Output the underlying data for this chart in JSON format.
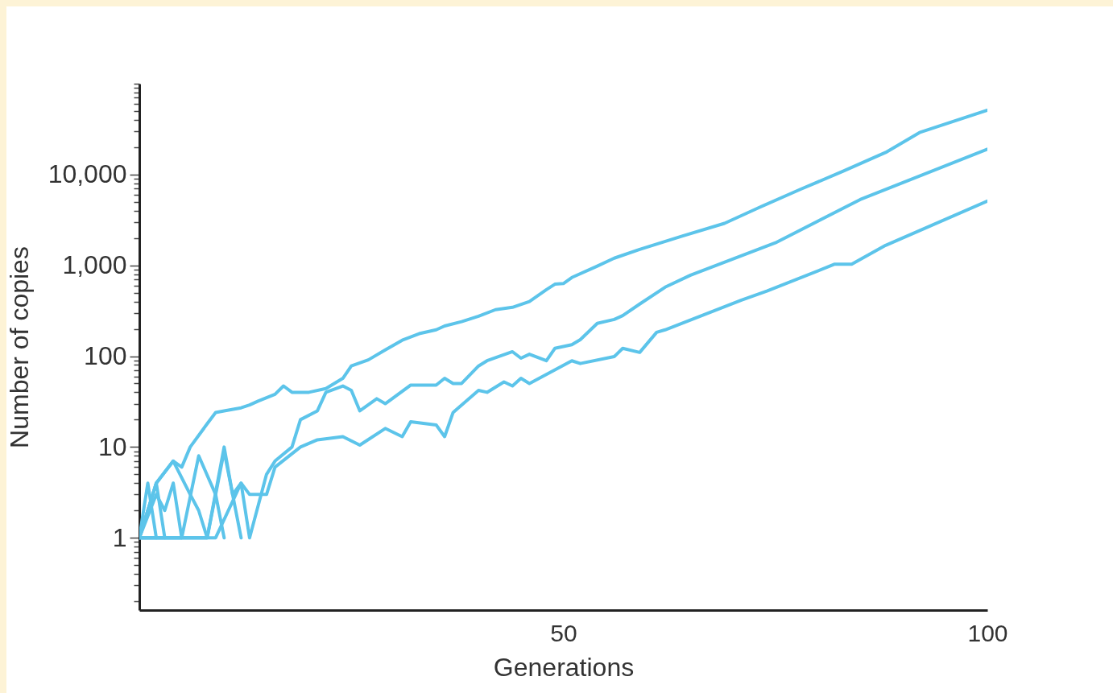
{
  "chart_data": {
    "type": "line",
    "xlabel": "Generations",
    "ylabel": "Number of copies",
    "log": true,
    "xlim": [
      0,
      100
    ],
    "xticks": [
      50,
      100
    ],
    "ylim": [
      0.16,
      100000
    ],
    "yticks": [
      {
        "value": 0.2,
        "label": null
      },
      {
        "value": 0.3,
        "label": null
      },
      {
        "value": 0.4,
        "label": null
      },
      {
        "value": 0.5,
        "label": null
      },
      {
        "value": 0.6,
        "label": null
      },
      {
        "value": 0.7,
        "label": null
      },
      {
        "value": 0.8,
        "label": null
      },
      {
        "value": 0.9,
        "label": null
      },
      1,
      {
        "value": 2,
        "label": null
      },
      {
        "value": 3,
        "label": null
      },
      {
        "value": 4,
        "label": null
      },
      {
        "value": 5,
        "label": null
      },
      {
        "value": 6,
        "label": null
      },
      {
        "value": 7,
        "label": null
      },
      {
        "value": 8,
        "label": null
      },
      {
        "value": 9,
        "label": null
      },
      10,
      {
        "value": 20,
        "label": null
      },
      {
        "value": 30,
        "label": null
      },
      {
        "value": 40,
        "label": null
      },
      {
        "value": 50,
        "label": null
      },
      {
        "value": 60,
        "label": null
      },
      {
        "value": 70,
        "label": null
      },
      {
        "value": 80,
        "label": null
      },
      {
        "value": 90,
        "label": null
      },
      100,
      {
        "value": 200,
        "label": null
      },
      {
        "value": 300,
        "label": null
      },
      {
        "value": 400,
        "label": null
      },
      {
        "value": 500,
        "label": null
      },
      {
        "value": 600,
        "label": null
      },
      {
        "value": 700,
        "label": null
      },
      {
        "value": 800,
        "label": null
      },
      {
        "value": 900,
        "label": null
      },
      {
        "value": 1000,
        "label": "1,000"
      },
      {
        "value": 2000,
        "label": null
      },
      {
        "value": 3000,
        "label": null
      },
      {
        "value": 4000,
        "label": null
      },
      {
        "value": 5000,
        "label": null
      },
      {
        "value": 6000,
        "label": null
      },
      {
        "value": 7000,
        "label": null
      },
      {
        "value": 8000,
        "label": null
      },
      {
        "value": 9000,
        "label": null
      },
      {
        "value": 10000,
        "label": "10,000"
      },
      {
        "value": 20000,
        "label": null
      },
      {
        "value": 30000,
        "label": null
      },
      {
        "value": 40000,
        "label": null
      },
      {
        "value": 50000,
        "label": null
      },
      {
        "value": 60000,
        "label": null
      },
      {
        "value": 70000,
        "label": null
      },
      {
        "value": 80000,
        "label": null
      },
      {
        "value": 90000,
        "label": null
      },
      {
        "value": 100000,
        "label": null
      }
    ],
    "grid": false,
    "legend": false,
    "line_style": "solid",
    "marker": "none",
    "series": [
      {
        "color": "#5cc4ea",
        "x": [
          0,
          2,
          4,
          5,
          6,
          8,
          9,
          10,
          12,
          13,
          14,
          16,
          17,
          18,
          20,
          22,
          24,
          25,
          27,
          29,
          31,
          33,
          35,
          36,
          38,
          40,
          42,
          44,
          46,
          48,
          49,
          50,
          51,
          54,
          56,
          59,
          64,
          69,
          73,
          78,
          83,
          88,
          92,
          100
        ],
        "values": [
          1,
          4,
          7,
          6,
          10,
          18,
          24,
          25,
          27,
          29,
          32,
          38,
          47,
          40,
          40,
          44,
          57,
          78,
          91,
          117,
          150,
          177,
          195,
          215,
          240,
          275,
          325,
          345,
          400,
          540,
          620,
          630,
          735,
          980,
          1200,
          1500,
          2100,
          2900,
          4300,
          6900,
          10900,
          17500,
          29000,
          51000
        ]
      },
      {
        "color": "#5cc4ea",
        "x": [
          0,
          9,
          12,
          13,
          15,
          16,
          18,
          19,
          21,
          22,
          24,
          25,
          26,
          28,
          29,
          32,
          35,
          36,
          37,
          38,
          40,
          41,
          44,
          45,
          46,
          48,
          49,
          51,
          52,
          54,
          56,
          57,
          59,
          62,
          65,
          75,
          85,
          100
        ],
        "values": [
          1,
          1,
          4,
          1,
          5,
          7,
          10,
          20,
          25,
          40,
          47,
          42,
          25,
          34,
          30,
          48,
          48,
          57,
          50,
          50,
          78,
          89,
          112,
          95,
          105,
          89,
          122,
          134,
          152,
          230,
          254,
          280,
          375,
          575,
          780,
          1770,
          5300,
          19000
        ]
      },
      {
        "color": "#5cc4ea",
        "x": [
          0,
          8,
          10,
          11,
          12,
          13,
          15,
          16,
          19,
          21,
          24,
          26,
          29,
          31,
          32,
          35,
          36,
          37,
          40,
          41,
          43,
          44,
          45,
          46,
          51,
          52,
          56,
          57,
          59,
          61,
          62,
          71,
          74,
          82,
          84,
          88,
          100
        ],
        "values": [
          1,
          1,
          10,
          3,
          4,
          3,
          3,
          6,
          10,
          12,
          13,
          10.5,
          16,
          13,
          19,
          17.5,
          13,
          24,
          42,
          40,
          52,
          47,
          57,
          50,
          89,
          83,
          99,
          122,
          110,
          183,
          195,
          415,
          520,
          1030,
          1030,
          1660,
          5100
        ]
      },
      {
        "color": "#5cc4ea",
        "x": [
          0,
          1,
          2
        ],
        "values": [
          1,
          4,
          1
        ]
      },
      {
        "color": "#5cc4ea",
        "x": [
          0,
          1,
          2,
          3
        ],
        "values": [
          1,
          2,
          4,
          1
        ]
      },
      {
        "color": "#5cc4ea",
        "x": [
          0,
          2,
          3,
          4,
          5
        ],
        "values": [
          1,
          3,
          2,
          4,
          1
        ]
      },
      {
        "color": "#5cc4ea",
        "x": [
          0,
          2,
          4,
          6,
          7,
          8
        ],
        "values": [
          1,
          4,
          7,
          3,
          2,
          1
        ]
      },
      {
        "color": "#5cc4ea",
        "x": [
          0,
          5,
          7,
          9,
          10
        ],
        "values": [
          1,
          1,
          8,
          3,
          1
        ]
      },
      {
        "color": "#5cc4ea",
        "x": [
          0,
          4,
          8,
          10,
          11,
          12
        ],
        "values": [
          1,
          1,
          1,
          9,
          3,
          1
        ]
      }
    ]
  }
}
